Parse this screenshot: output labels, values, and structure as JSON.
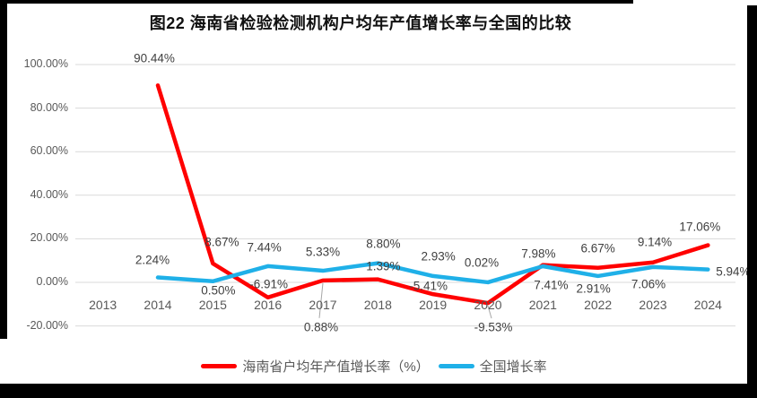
{
  "chart_data": {
    "type": "line",
    "title": "图22  海南省检验检测机构户均年产值增长率与全国的比较",
    "categories": [
      "2013",
      "2014",
      "2015",
      "2016",
      "2017",
      "2018",
      "2019",
      "2020",
      "2021",
      "2022",
      "2023",
      "2024"
    ],
    "series": [
      {
        "name": "海南省户均年产值增长率（%）",
        "color": "#FF0000",
        "values": [
          null,
          90.44,
          8.67,
          -6.91,
          0.88,
          1.39,
          -5.41,
          -9.53,
          7.98,
          6.67,
          9.14,
          17.06
        ],
        "labels": [
          "",
          "90.44%",
          "8.67%",
          "-6.91%",
          "0.88%",
          "1.39%",
          "-5.41%",
          "-9.53%",
          "7.98%",
          "6.67%",
          "9.14%",
          "17.06%"
        ],
        "label_offsets": [
          null,
          [
            -4,
            -30
          ],
          [
            10,
            -24
          ],
          [
            1,
            -15
          ],
          [
            -2,
            52
          ],
          [
            6,
            -15
          ],
          [
            -5,
            -9
          ],
          [
            6,
            27
          ],
          [
            -5,
            -13
          ],
          [
            0,
            -22
          ],
          [
            2,
            -23
          ],
          [
            -9,
            -21
          ]
        ],
        "leader_indices": [
          4,
          7
        ]
      },
      {
        "name": "全国增长率",
        "color": "#1FB0E8",
        "values": [
          null,
          2.24,
          0.5,
          7.44,
          5.33,
          8.8,
          2.93,
          0.02,
          7.41,
          2.91,
          7.06,
          5.94
        ],
        "labels": [
          "",
          "2.24%",
          "0.50%",
          "7.44%",
          "5.33%",
          "8.80%",
          "2.93%",
          "0.02%",
          "7.41%",
          "2.91%",
          "7.06%",
          "5.94%"
        ],
        "label_offsets": [
          null,
          [
            -6,
            -20
          ],
          [
            6,
            10
          ],
          [
            -4,
            -21
          ],
          [
            0,
            -21
          ],
          [
            6,
            -22
          ],
          [
            6,
            -22
          ],
          [
            -7,
            -22
          ],
          [
            9,
            21
          ],
          [
            -5,
            14
          ],
          [
            -5,
            19
          ],
          [
            28,
            2
          ]
        ],
        "leader_indices": []
      }
    ],
    "y_axis": {
      "tick_labels": [
        "100.00%",
        "80.00%",
        "60.00%",
        "40.00%",
        "20.00%",
        "0.00%",
        "-20.00%"
      ],
      "tick_values": [
        100,
        80,
        60,
        40,
        20,
        0,
        -20
      ]
    },
    "ylim": [
      -20,
      100
    ],
    "grid": true,
    "legend_position": "bottom",
    "style": {
      "grid_color": "#D9D9D9",
      "leader_color": "#A6A6A6",
      "axis_text_color": "#595959",
      "data_label_color": "#404040"
    }
  }
}
